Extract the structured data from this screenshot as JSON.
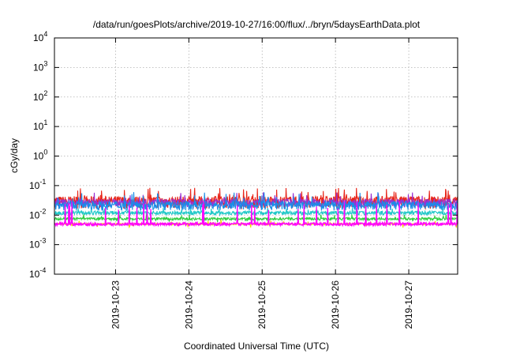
{
  "chart_data": {
    "type": "line",
    "title": "/data/run/goesPlots/archive/2019-10-27/16:00/flux/../bryn/5daysEarthData.plot",
    "xlabel": "Coordinated Universal Time (UTC)",
    "ylabel": "cGy/day",
    "yscale": "log",
    "ylim": [
      0.0001,
      10000
    ],
    "xlim": [
      "2019-10-22T04:00",
      "2019-10-27T16:00"
    ],
    "y_ticks": [
      {
        "value": 0.0001,
        "base": "10",
        "exp": "-4"
      },
      {
        "value": 0.001,
        "base": "10",
        "exp": "-3"
      },
      {
        "value": 0.01,
        "base": "10",
        "exp": "-2"
      },
      {
        "value": 0.1,
        "base": "10",
        "exp": "-1"
      },
      {
        "value": 1,
        "base": "10",
        "exp": "0"
      },
      {
        "value": 10,
        "base": "10",
        "exp": "1"
      },
      {
        "value": 100,
        "base": "10",
        "exp": "2"
      },
      {
        "value": 1000,
        "base": "10",
        "exp": "3"
      },
      {
        "value": 10000,
        "base": "10",
        "exp": "4"
      }
    ],
    "x_ticks": [
      "2019-10-23",
      "2019-10-24",
      "2019-10-25",
      "2019-10-26",
      "2019-10-27"
    ],
    "grid": true,
    "series": [
      {
        "color": "#e8261a",
        "base": 0.03,
        "spread": 0.45,
        "spikes": 0.07
      },
      {
        "color": "#9b2fd1",
        "base": 0.027,
        "spread": 0.3,
        "spikes": 0.05
      },
      {
        "color": "#1a8ce8",
        "base": 0.022,
        "spread": 0.35,
        "spikes": 0.05
      },
      {
        "color": "#20c8c8",
        "base": 0.012,
        "spread": 0.15,
        "spikes": 0.015
      },
      {
        "color": "#2ecc40",
        "base": 0.0075,
        "spread": 0.1,
        "spikes": 0.009
      },
      {
        "color": "#f0e000",
        "base": 0.005,
        "spread": 0.06,
        "spikes": 0.006
      },
      {
        "color": "#ff00ff",
        "base": 0.005,
        "spread": 0.12,
        "spikes": 0.025
      }
    ]
  }
}
